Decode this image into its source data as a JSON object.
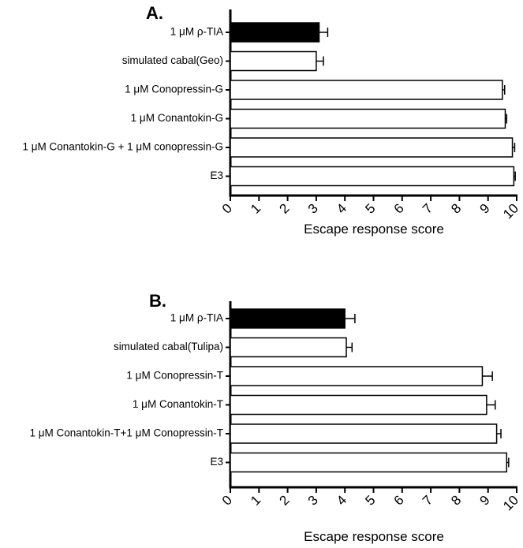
{
  "chart_data": [
    {
      "type": "bar",
      "orientation": "horizontal",
      "panel_label": "A.",
      "xlabel": "Escape response score",
      "xlim": [
        0,
        10
      ],
      "xticks": [
        "0",
        "1",
        "2",
        "3",
        "4",
        "5",
        "6",
        "7",
        "8",
        "9",
        "10"
      ],
      "categories": [
        "1 μM ρ-TIA",
        "simulated cabal(Geo)",
        "1 μM Conopressin-G",
        "1 μM Conantokin-G",
        "1 μM Conantokin-G + 1 μM conopressin-G",
        "E3"
      ],
      "values": [
        3.1,
        3.0,
        9.5,
        9.6,
        9.85,
        9.9
      ],
      "errors": [
        0.3,
        0.25,
        0.08,
        0.05,
        0.08,
        0.05
      ],
      "bar_colors": [
        "#000000",
        "#ffffff",
        "#ffffff",
        "#ffffff",
        "#ffffff",
        "#ffffff"
      ]
    },
    {
      "type": "bar",
      "orientation": "horizontal",
      "panel_label": "B.",
      "xlabel": "Escape response score",
      "xlim": [
        0,
        10
      ],
      "xticks": [
        "0",
        "1",
        "2",
        "3",
        "4",
        "5",
        "6",
        "7",
        "8",
        "9",
        "10"
      ],
      "categories": [
        "1 μM ρ-TIA",
        "simulated cabal(Tulipa)",
        "1 μM Conopressin-T",
        "1 μM Conantokin-T",
        "1 μM Conantokin-T+1 μM Conopressin-T",
        "E3"
      ],
      "values": [
        4.0,
        4.05,
        8.8,
        8.95,
        9.3,
        9.65
      ],
      "errors": [
        0.35,
        0.2,
        0.35,
        0.3,
        0.15,
        0.07
      ],
      "bar_colors": [
        "#000000",
        "#ffffff",
        "#ffffff",
        "#ffffff",
        "#ffffff",
        "#ffffff"
      ]
    }
  ]
}
